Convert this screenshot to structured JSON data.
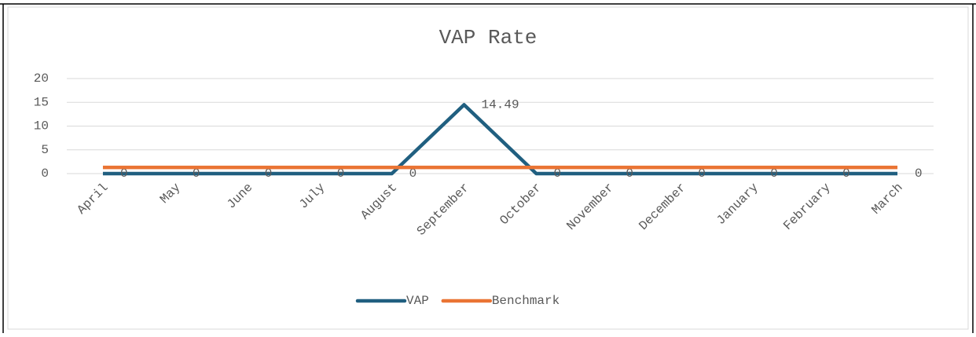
{
  "chart_data": {
    "type": "line",
    "title": "VAP Rate",
    "categories": [
      "April",
      "May",
      "June",
      "July",
      "August",
      "September",
      "October",
      "November",
      "December",
      "January",
      "February",
      "March"
    ],
    "series": [
      {
        "name": "VAP",
        "color": "#205f80",
        "values": [
          0,
          0,
          0,
          0,
          0,
          14.49,
          0,
          0,
          0,
          0,
          0,
          0
        ],
        "data_labels": true
      },
      {
        "name": "Benchmark",
        "color": "#ea7434",
        "values": [
          1.3,
          1.3,
          1.3,
          1.3,
          1.3,
          1.3,
          1.3,
          1.3,
          1.3,
          1.3,
          1.3,
          1.3
        ],
        "data_labels": false
      }
    ],
    "ylim": [
      0,
      20
    ],
    "yticks": [
      0,
      5,
      10,
      15,
      20
    ],
    "grid": true,
    "legend": "bottom"
  }
}
